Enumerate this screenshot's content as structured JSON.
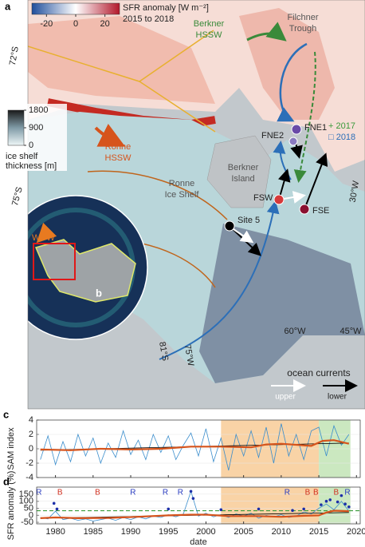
{
  "map": {
    "panel": "a",
    "sfr_colorbar": {
      "title": "SFR anomaly [W m⁻²]",
      "period": "2015 to 2018",
      "range": [
        -30,
        30
      ],
      "ticks": [
        -20,
        0,
        20
      ]
    },
    "ice_colorbar": {
      "lines": [
        "ice shelf",
        "thickness [m]"
      ],
      "range": [
        0,
        1800
      ],
      "ticks": [
        1800,
        900,
        0
      ]
    },
    "labels": {
      "berkner_hssw": [
        "Berkner",
        "HSSW"
      ],
      "filchner_trough": [
        "Filchner",
        "Trough"
      ],
      "ronne_hssw": [
        "Ronne",
        "HSSW"
      ],
      "ronne_ice_shelf": [
        "Ronne",
        "Ice Shelf"
      ],
      "berkner_island": [
        "Berkner",
        "Island"
      ],
      "wdw": "WDW"
    },
    "years": [
      "+ 2017",
      "□ 2018"
    ],
    "sites": [
      "FNE1",
      "FNE2",
      "FSW",
      "FSE",
      "Site 5"
    ],
    "lat_labels": [
      "72°S",
      "75°S"
    ],
    "lon_labels": [
      "30°W",
      "45°W",
      "60°W",
      "75°W",
      "81°S"
    ],
    "legend": {
      "title": "ocean currents",
      "upper": "upper",
      "lower": "lower"
    },
    "inset": "b"
  },
  "chart_data": [
    {
      "type": "line",
      "panel": "c",
      "ylabel": "SAM index",
      "xlim": [
        1977.5,
        2020.5
      ],
      "xticks": [
        1980,
        1985,
        1990,
        1995,
        2000,
        2005,
        2010,
        2015,
        2020
      ],
      "show_xticklabels": false,
      "ylim": [
        -4,
        4
      ],
      "yticks": [
        -4,
        -2,
        0,
        2,
        4
      ],
      "shaded": [
        {
          "from": 2002,
          "to": 2015,
          "color": "#f9d3a6"
        },
        {
          "from": 2015,
          "to": 2019.2,
          "color": "#cbe8c0"
        }
      ],
      "series": [
        {
          "color": "#3a8dcc",
          "width": 0.8,
          "x": [
            1978,
            1979,
            1980,
            1981,
            1982,
            1983,
            1984,
            1985,
            1986,
            1987,
            1988,
            1989,
            1990,
            1991,
            1992,
            1993,
            1994,
            1995,
            1996,
            1997,
            1998,
            1999,
            2000,
            2001,
            2002,
            2003,
            2004,
            2005,
            2006,
            2007,
            2008,
            2009,
            2010,
            2011,
            2012,
            2013,
            2014,
            2015,
            2016,
            2017,
            2018,
            2019
          ],
          "values": [
            -1.5,
            1.8,
            -2.2,
            1.0,
            -1.8,
            2.0,
            -1.0,
            1.5,
            -2.0,
            0.8,
            -1.2,
            2.5,
            -0.8,
            1.2,
            -1.5,
            2.0,
            -0.5,
            1.8,
            -1.5,
            0.5,
            2.2,
            -1.0,
            2.8,
            -1.8,
            1.5,
            -3.0,
            2.0,
            -1.0,
            2.5,
            -1.2,
            3.0,
            -2.0,
            3.5,
            -1.0,
            2.0,
            -1.5,
            2.5,
            3.0,
            -1.0,
            3.2,
            0.5,
            2.0
          ]
        },
        {
          "color": "#000000",
          "width": 0.8,
          "x": [
            1978,
            2019
          ],
          "values": [
            -0.2,
            0.8
          ]
        },
        {
          "color": "#d6541c",
          "width": 2.2,
          "x": [
            1978,
            1982,
            1986,
            1990,
            1994,
            1998,
            2002,
            2006,
            2008,
            2010,
            2014,
            2015.5,
            2017,
            2019
          ],
          "values": [
            -0.1,
            -0.2,
            0,
            -0.1,
            0,
            0.3,
            0.3,
            0.2,
            0.6,
            0.7,
            0.4,
            1.1,
            1.2,
            0.7
          ]
        }
      ]
    },
    {
      "type": "line",
      "panel": "d",
      "ylabel": "SFR anomaly (%)",
      "xlabel": "date",
      "xlim": [
        1977.5,
        2020.5
      ],
      "xticks": [
        1980,
        1985,
        1990,
        1995,
        2000,
        2005,
        2010,
        2015,
        2020
      ],
      "show_xticklabels": true,
      "ylim": [
        -60,
        200
      ],
      "yticks": [
        -50,
        0,
        50,
        100,
        150
      ],
      "shaded": [
        {
          "from": 2002,
          "to": 2015,
          "color": "#f9d3a6"
        },
        {
          "from": 2015,
          "to": 2019.2,
          "color": "#cbe8c0"
        }
      ],
      "hline": {
        "value": 33,
        "color": "#3a9a3a"
      },
      "events": [
        {
          "x": 1977.8,
          "label": "R",
          "color": "#2a3cc0"
        },
        {
          "x": 1980.6,
          "label": "B",
          "color": "#d03020"
        },
        {
          "x": 1985.6,
          "label": "B",
          "color": "#d03020"
        },
        {
          "x": 1990.3,
          "label": "R",
          "color": "#2a3cc0"
        },
        {
          "x": 1994.6,
          "label": "R",
          "color": "#2a3cc0"
        },
        {
          "x": 1996.6,
          "label": "R",
          "color": "#2a3cc0"
        },
        {
          "x": 2010.8,
          "label": "R",
          "color": "#2a3cc0"
        },
        {
          "x": 2013.5,
          "label": "B",
          "color": "#d03020"
        },
        {
          "x": 2014.6,
          "label": "B",
          "color": "#d03020"
        },
        {
          "x": 2017.3,
          "label": "B",
          "color": "#d03020"
        },
        {
          "x": 2018.8,
          "label": "R",
          "color": "#2a3cc0"
        }
      ],
      "series": [
        {
          "color": "#3a8dcc",
          "width": 0.8,
          "x": [
            1978,
            1979,
            1980,
            1981,
            1982,
            1983,
            1984,
            1985,
            1986,
            1987,
            1988,
            1989,
            1990,
            1991,
            1992,
            1993,
            1994,
            1995,
            1996,
            1997,
            1998,
            1999,
            2000,
            2001,
            2002,
            2003,
            2004,
            2005,
            2006,
            2007,
            2008,
            2009,
            2010,
            2011,
            2012,
            2013,
            2014,
            2015,
            2016,
            2017,
            2018,
            2019
          ],
          "values": [
            -15,
            -25,
            30,
            -30,
            -20,
            -35,
            -25,
            -40,
            -30,
            -20,
            -35,
            -15,
            -30,
            -10,
            -25,
            -5,
            -15,
            5,
            -10,
            10,
            170,
            -5,
            15,
            -10,
            5,
            -15,
            10,
            -5,
            15,
            -20,
            0,
            -10,
            5,
            -15,
            -5,
            25,
            10,
            50,
            80,
            40,
            100,
            30
          ]
        },
        {
          "color": "#1c2fa8",
          "style": "dots",
          "x": [
            1979.8,
            1980.2,
            1995,
            1998,
            1998.3,
            2002,
            2007,
            2011.5,
            2013,
            2015.3,
            2016,
            2016.5,
            2017.5,
            2018,
            2018.5,
            2019
          ],
          "values": [
            85,
            45,
            45,
            170,
            120,
            40,
            45,
            35,
            45,
            75,
            100,
            110,
            95,
            140,
            80,
            60
          ]
        },
        {
          "color": "#000000",
          "width": 0.8,
          "x": [
            1978,
            2019
          ],
          "values": [
            -20,
            20
          ]
        },
        {
          "color": "#d6541c",
          "width": 2.2,
          "x": [
            1978,
            1980,
            1983,
            1987,
            1991,
            1995,
            1998,
            2000,
            2003,
            2007,
            2010,
            2013,
            2015,
            2016,
            2017,
            2019
          ],
          "values": [
            -20,
            -15,
            -20,
            -18,
            -10,
            0,
            5,
            5,
            -5,
            -5,
            -10,
            -3,
            0,
            20,
            33,
            30
          ]
        }
      ]
    }
  ]
}
